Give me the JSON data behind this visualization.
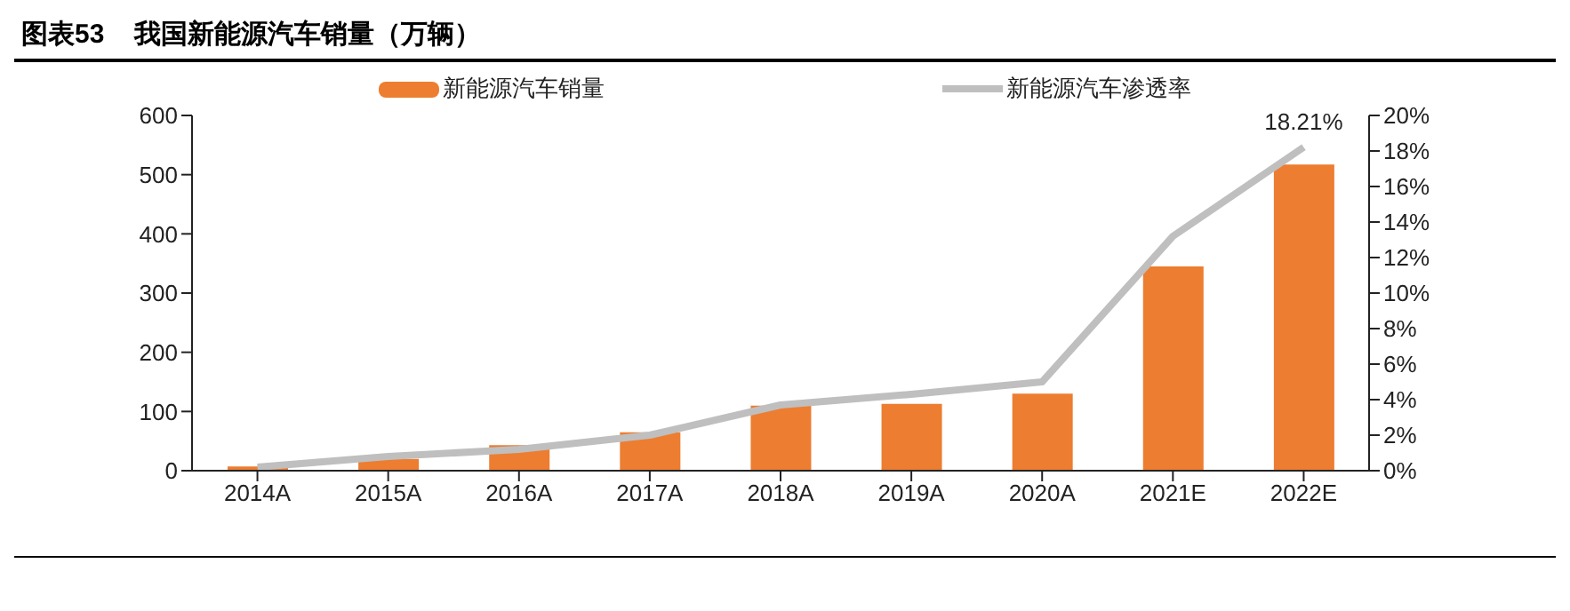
{
  "chart_data": {
    "type": "bar",
    "title": "图表53    我国新能源汽车销量（万辆）",
    "categories": [
      "2014A",
      "2015A",
      "2016A",
      "2017A",
      "2018A",
      "2019A",
      "2020A",
      "2021E",
      "2022E"
    ],
    "series": [
      {
        "name": "新能源汽车销量",
        "color": "#ed7d31",
        "values": [
          7,
          20,
          43,
          65,
          110,
          113,
          130,
          345,
          517
        ]
      },
      {
        "name": "新能源汽车渗透率",
        "type": "line",
        "axis": "y2",
        "color": "#bfbfbf",
        "values": [
          0.2,
          0.8,
          1.2,
          2.0,
          3.7,
          4.3,
          5.0,
          13.2,
          18.21
        ],
        "value_labels": [
          null,
          null,
          null,
          null,
          null,
          null,
          null,
          null,
          "18.21%"
        ]
      }
    ],
    "ylim": [
      0,
      600
    ],
    "yticks": [
      0,
      100,
      200,
      300,
      400,
      500,
      600
    ],
    "y2lim": [
      0,
      20
    ],
    "y2ticks": [
      {
        "value": 0,
        "label": "0%"
      },
      {
        "value": 2,
        "label": "2%"
      },
      {
        "value": 4,
        "label": "4%"
      },
      {
        "value": 6,
        "label": "6%"
      },
      {
        "value": 8,
        "label": "8%"
      },
      {
        "value": 10,
        "label": "10%"
      },
      {
        "value": 12,
        "label": "12%"
      },
      {
        "value": 14,
        "label": "14%"
      },
      {
        "value": 16,
        "label": "16%"
      },
      {
        "value": 18,
        "label": "18%"
      },
      {
        "value": 20,
        "label": "20%"
      }
    ],
    "legend": "top",
    "grid": false,
    "marker": "none",
    "line_style": "solid"
  }
}
